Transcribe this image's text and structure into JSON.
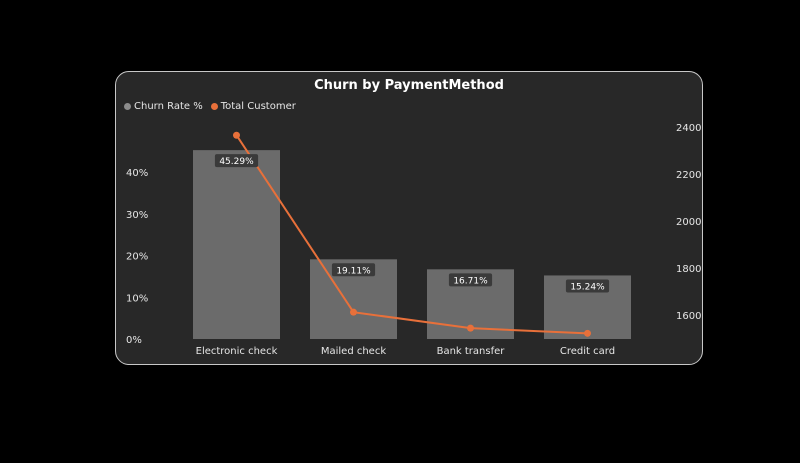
{
  "chart_data": {
    "type": "bar",
    "title": "Churn by PaymentMethod",
    "categories": [
      "Electronic check",
      "Mailed check",
      "Bank transfer",
      "Credit card"
    ],
    "series": [
      {
        "name": "Churn Rate %",
        "type": "bar",
        "axis": "left",
        "values": [
          45.29,
          19.11,
          16.71,
          15.24
        ],
        "data_labels": [
          "45.29%",
          "19.11%",
          "16.71%",
          "15.24%"
        ],
        "color": "#6b6b6b"
      },
      {
        "name": "Total Customer",
        "type": "line",
        "axis": "right",
        "values": [
          2365,
          1612,
          1544,
          1522
        ],
        "color": "#e8703a"
      }
    ],
    "y_left": {
      "ticks": [
        0,
        10,
        20,
        30,
        40
      ],
      "tick_labels": [
        "0%",
        "10%",
        "20%",
        "30%",
        "40%"
      ],
      "lim": [
        0,
        47
      ]
    },
    "y_right": {
      "ticks": [
        1600,
        1800,
        2000,
        2200,
        2400
      ],
      "tick_labels": [
        "1600",
        "1800",
        "2000",
        "2200",
        "2400"
      ],
      "lim": [
        1500,
        2400
      ]
    },
    "grid": false,
    "legend": "top-left"
  }
}
